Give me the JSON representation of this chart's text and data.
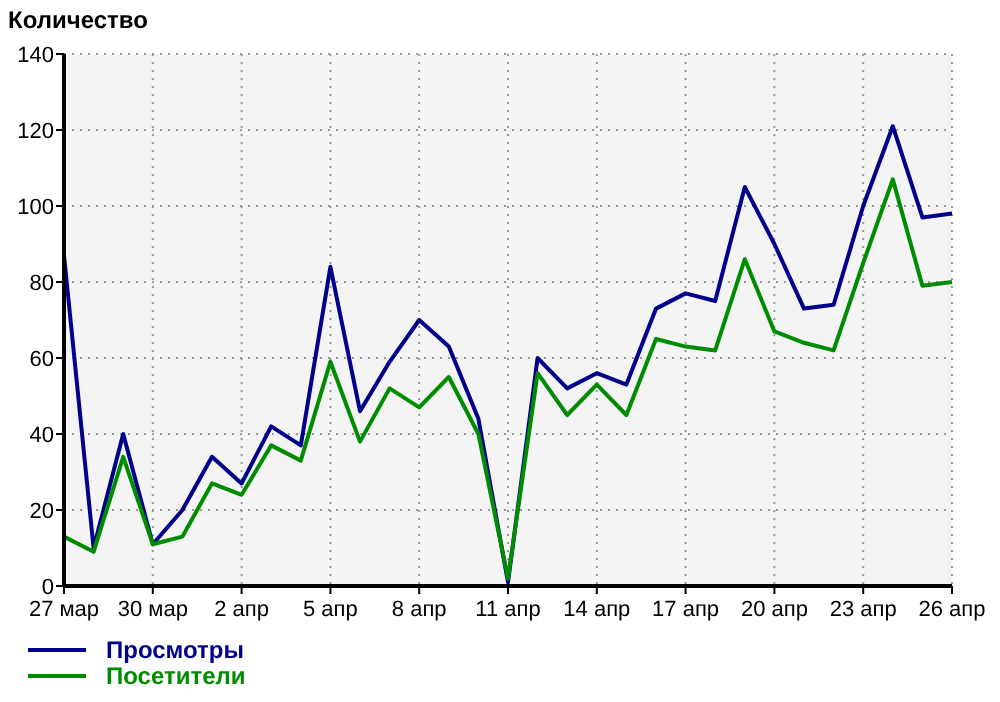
{
  "chart_data": {
    "type": "line",
    "ylabel": "Количество",
    "categories": [
      "27 мар",
      null,
      null,
      "30 мар",
      null,
      null,
      "2 апр",
      null,
      null,
      "5 апр",
      null,
      null,
      "8 апр",
      null,
      null,
      "11 апр",
      null,
      null,
      "14 апр",
      null,
      null,
      "17 апр",
      null,
      null,
      "20 апр",
      null,
      null,
      "23 апр",
      null,
      null,
      "26 апр"
    ],
    "series": [
      {
        "name": "Просмотры",
        "color": "#00008b",
        "values": [
          87,
          10,
          40,
          11,
          20,
          34,
          27,
          42,
          37,
          84,
          46,
          59,
          70,
          63,
          44,
          1,
          60,
          52,
          56,
          53,
          73,
          77,
          75,
          105,
          90,
          73,
          74,
          100,
          121,
          97,
          98
        ]
      },
      {
        "name": "Посетители",
        "color": "#008c00",
        "values": [
          13,
          9,
          34,
          11,
          13,
          27,
          24,
          37,
          33,
          59,
          38,
          52,
          47,
          55,
          40,
          2,
          56,
          45,
          53,
          45,
          65,
          63,
          62,
          86,
          67,
          64,
          62,
          85,
          107,
          79,
          80
        ]
      }
    ],
    "ylim": [
      0,
      140
    ],
    "yticks": [
      0,
      20,
      40,
      60,
      80,
      100,
      120,
      140
    ],
    "grid": true,
    "legend": "bottom left",
    "marker": "none",
    "line_style": "solid"
  }
}
